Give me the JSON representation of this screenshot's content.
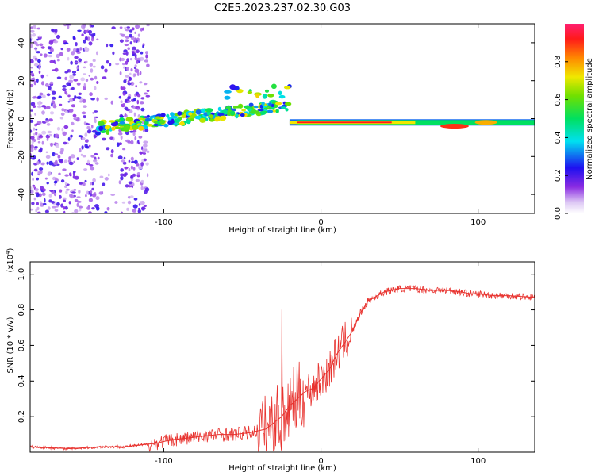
{
  "figure_title": "C2E5.2023.237.02.30.G03",
  "chart_data": [
    {
      "type": "heatmap",
      "title": "C2E5.2023.237.02.30.G03",
      "xlabel": "Height of straight line (km)",
      "ylabel": "Frequency (Hz)",
      "xlim": [
        -185,
        136
      ],
      "ylim": [
        -50,
        50
      ],
      "xticks": [
        -100,
        0,
        100
      ],
      "xtick_labels": [
        "-100",
        "0",
        "100"
      ],
      "yticks": [
        -40,
        -20,
        0,
        20,
        40
      ],
      "ytick_labels": [
        "-40",
        "-20",
        "0",
        "20",
        "40"
      ],
      "colorbar": {
        "label": "Normalized spectral amplitude",
        "range": [
          0,
          1
        ],
        "ticks": [
          0.0,
          0.2,
          0.4,
          0.6,
          0.8
        ],
        "tick_labels": [
          "0.0",
          "0.2",
          "0.4",
          "0.6",
          "0.8"
        ],
        "colormap": "rainbow (violet-blue-cyan-green-yellow-orange-red-magenta)"
      },
      "features": [
        {
          "name": "scattered noise",
          "x_range": [
            -185,
            -110
          ],
          "freq_range": [
            -50,
            50
          ],
          "amplitude": 0.05
        },
        {
          "name": "rising trace",
          "x_range": [
            -142,
            -20
          ],
          "freq_start": -5,
          "freq_end": 7,
          "amplitude_range": [
            0.2,
            0.8
          ]
        },
        {
          "name": "steady trace",
          "x_range": [
            -20,
            136
          ],
          "freq": -2,
          "amplitude_range": [
            0.4,
            0.95
          ]
        }
      ]
    },
    {
      "type": "line",
      "title": "",
      "xlabel": "Height of straight line (km)",
      "ylabel": "SNR (10 * v/v)",
      "y_multiplier": "(x10^4)",
      "xlim": [
        -185,
        136
      ],
      "ylim": [
        0,
        1.07
      ],
      "xticks": [
        -100,
        0,
        100
      ],
      "xtick_labels": [
        "-100",
        "0",
        "100"
      ],
      "yticks": [
        0.2,
        0.4,
        0.6,
        0.8,
        1.0
      ],
      "ytick_labels": [
        "0.2",
        "0.4",
        "0.6",
        "0.8",
        "1.0"
      ],
      "series": [
        {
          "name": "SNR",
          "color": "#e8332f",
          "x": [
            -185,
            -160,
            -140,
            -125,
            -115,
            -105,
            -95,
            -85,
            -75,
            -65,
            -55,
            -45,
            -35,
            -25,
            -20,
            -15,
            -10,
            -5,
            0,
            5,
            10,
            20,
            25,
            30,
            40,
            50,
            60,
            70,
            80,
            90,
            95,
            100,
            110,
            120,
            136
          ],
          "values": [
            0.03,
            0.02,
            0.03,
            0.03,
            0.04,
            0.05,
            0.07,
            0.08,
            0.09,
            0.1,
            0.1,
            0.11,
            0.13,
            0.2,
            0.26,
            0.3,
            0.34,
            0.36,
            0.41,
            0.46,
            0.55,
            0.68,
            0.78,
            0.85,
            0.9,
            0.92,
            0.92,
            0.91,
            0.91,
            0.9,
            0.89,
            0.89,
            0.88,
            0.88,
            0.87
          ]
        }
      ]
    }
  ]
}
